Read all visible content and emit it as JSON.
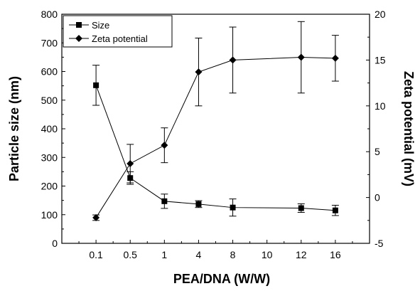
{
  "chart_data": {
    "type": "line",
    "title": "",
    "xlabel": "PEA/DNA (W/W)",
    "ylabel": "Particle size (nm)",
    "y2label": "Zeta potential (mV)",
    "x_categories": [
      "0.1",
      "0.5",
      "1",
      "4",
      "8",
      "10",
      "12",
      "16"
    ],
    "ylim": [
      0,
      800
    ],
    "y_ticks": [
      "0",
      "100",
      "200",
      "300",
      "400",
      "500",
      "600",
      "700",
      "800"
    ],
    "y2lim": [
      -5,
      20
    ],
    "y2_ticks": [
      "-5",
      "0",
      "5",
      "10",
      "15",
      "20"
    ],
    "legend_position": "top-left",
    "series": [
      {
        "name": "Size",
        "axis": "left",
        "marker": "square",
        "x": [
          "0.1",
          "0.5",
          "1",
          "4",
          "8",
          "12",
          "16"
        ],
        "values": [
          552,
          228,
          147,
          137,
          125,
          123,
          115
        ],
        "errors": [
          70,
          22,
          25,
          12,
          30,
          15,
          18
        ]
      },
      {
        "name": "Zeta potential",
        "axis": "right",
        "marker": "diamond",
        "x": [
          "0.1",
          "0.5",
          "1",
          "4",
          "8",
          "12",
          "16"
        ],
        "values": [
          -2.2,
          3.7,
          5.7,
          13.7,
          15.0,
          15.3,
          15.2
        ],
        "errors": [
          0.3,
          2.1,
          1.9,
          3.7,
          3.6,
          3.9,
          2.5
        ]
      }
    ]
  }
}
